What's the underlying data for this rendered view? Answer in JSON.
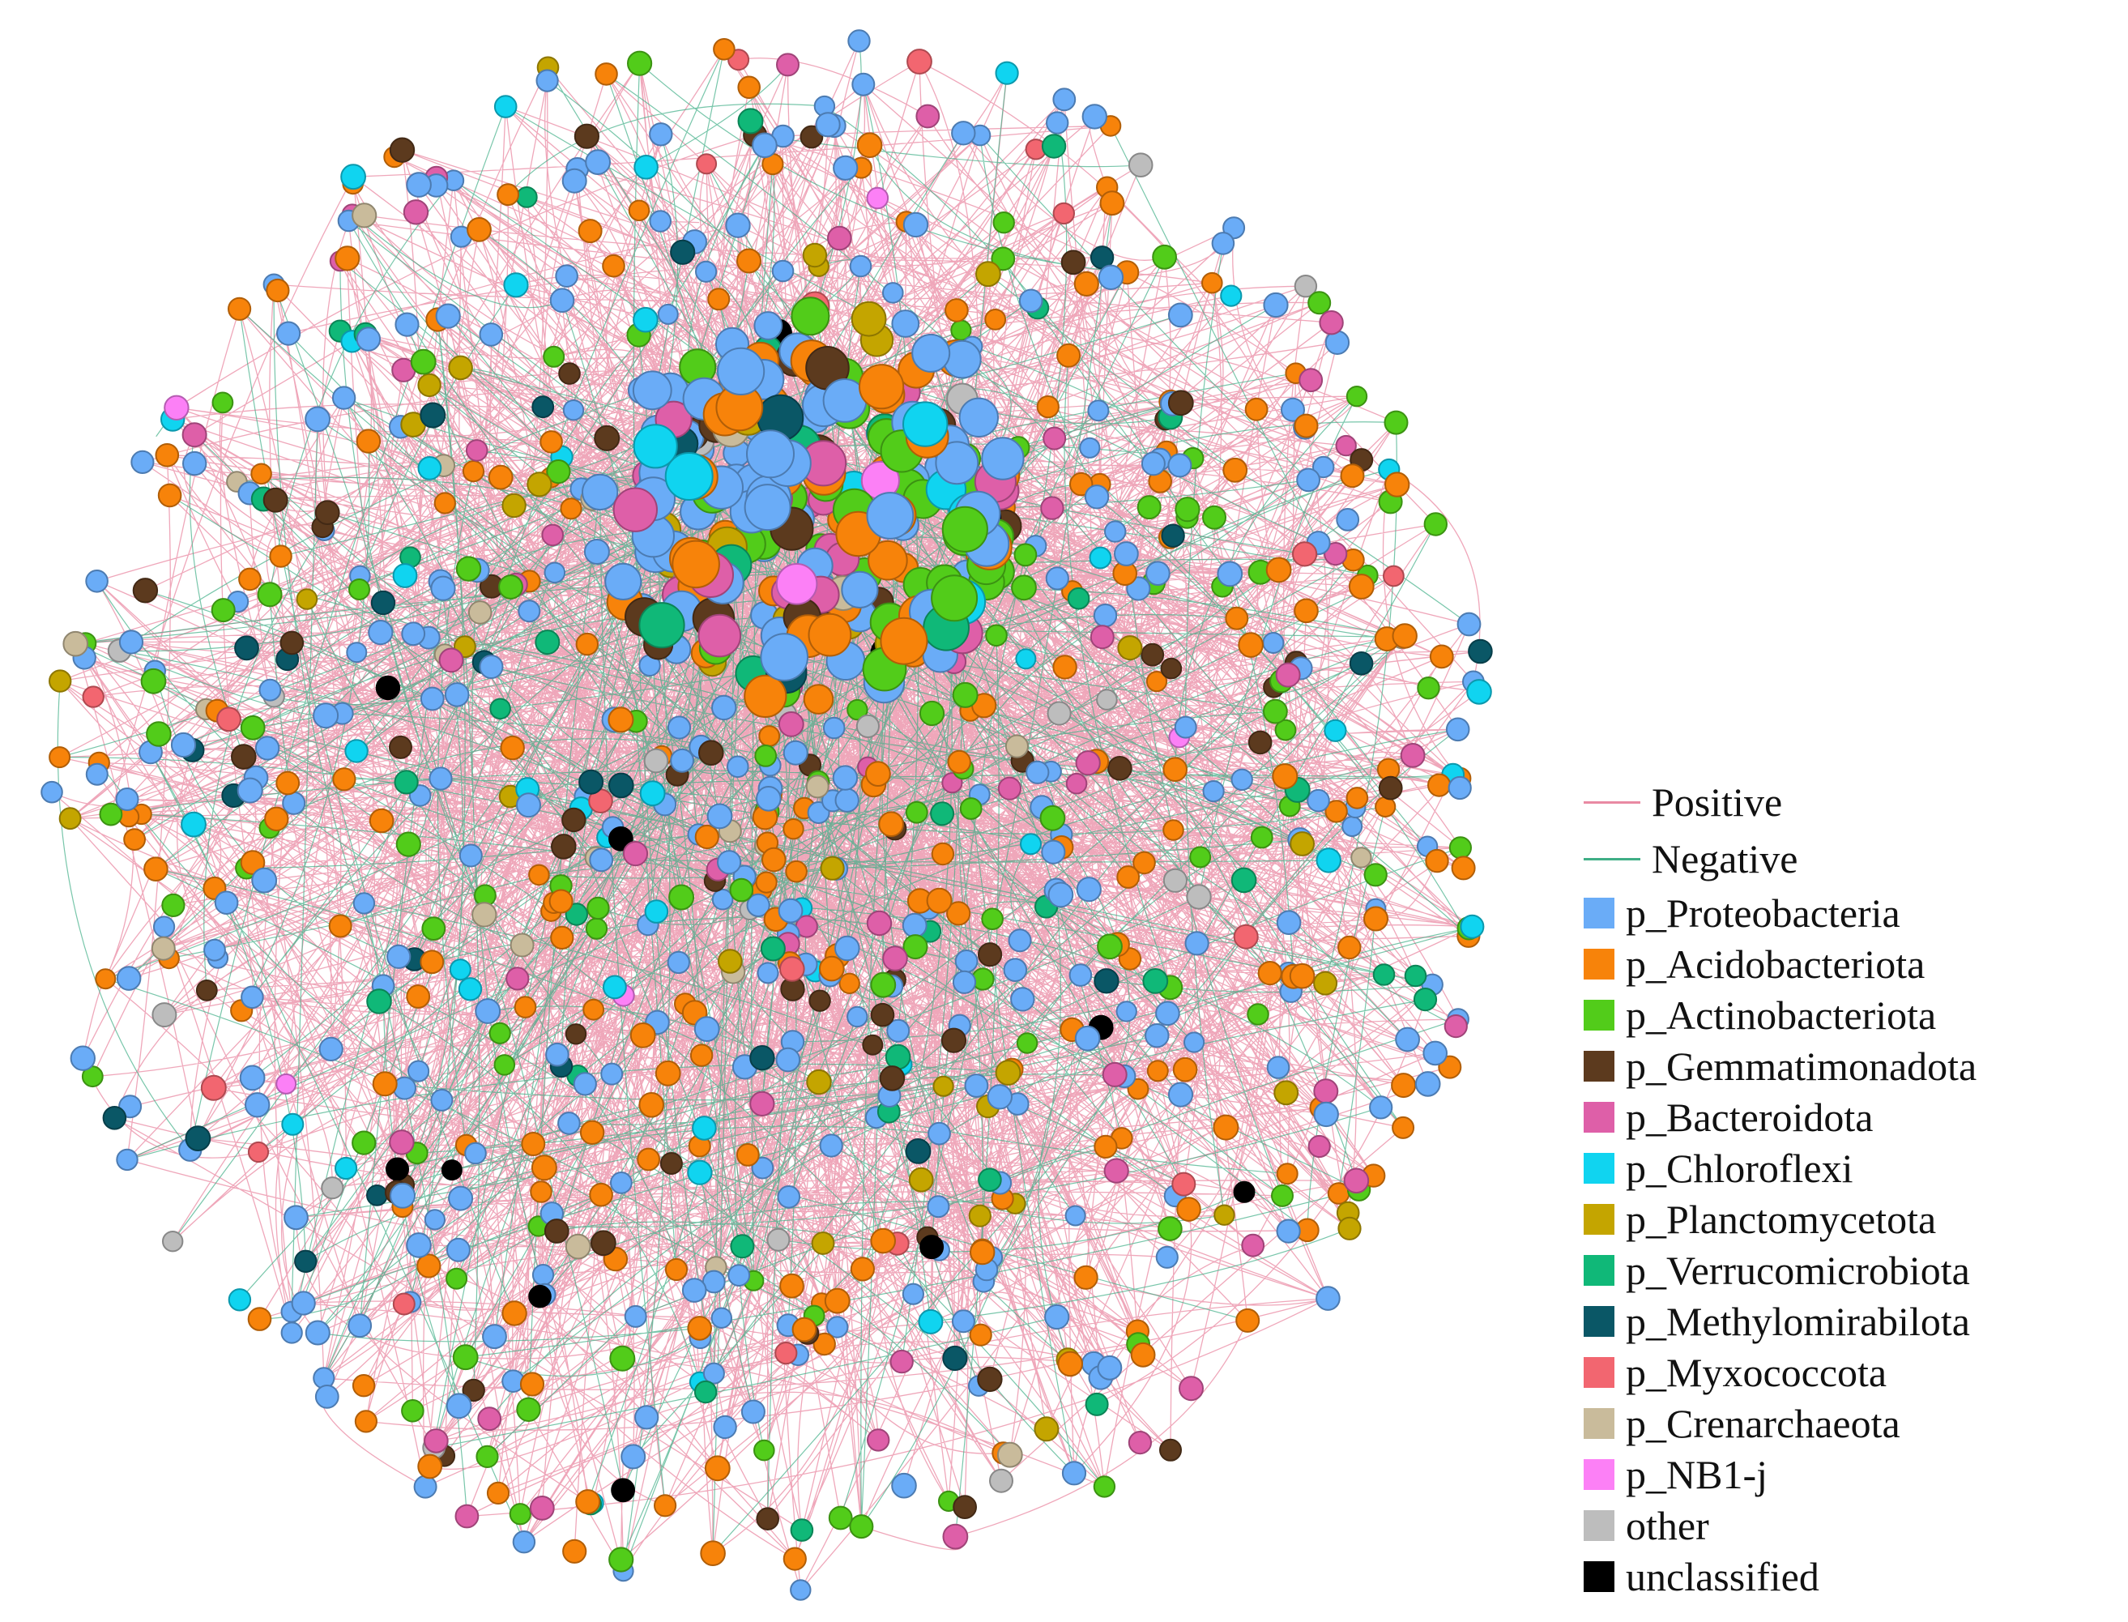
{
  "diagram": {
    "edge_types": [
      {
        "label": "Positive",
        "color": "#e98aa3"
      },
      {
        "label": "Negative",
        "color": "#3fae86"
      }
    ],
    "phyla": [
      {
        "label": "p_Proteobacteria",
        "color": "#6aacf7",
        "icon": "proteobacteria-node"
      },
      {
        "label": "p_Acidobacteriota",
        "color": "#f7830a",
        "icon": "acidobacteriota-node"
      },
      {
        "label": "p_Actinobacteriota",
        "color": "#52cc1a",
        "icon": "actinobacteriota-node"
      },
      {
        "label": "p_Gemmatimonadota",
        "color": "#5c3a1e",
        "icon": "gemmatimonadota-node"
      },
      {
        "label": "p_Bacteroidota",
        "color": "#de5fa8",
        "icon": "bacteroidota-node"
      },
      {
        "label": "p_Chloroflexi",
        "color": "#10d4f0",
        "icon": "chloroflexi-node"
      },
      {
        "label": "p_Planctomycetota",
        "color": "#c4a500",
        "icon": "planctomycetota-node"
      },
      {
        "label": "p_Verrucomicrobiota",
        "color": "#10b878",
        "icon": "verrucomicrobiota-node"
      },
      {
        "label": "p_Methylomirabilota",
        "color": "#0a5766",
        "icon": "methylomirabilota-node"
      },
      {
        "label": "p_Myxococcota",
        "color": "#f26670",
        "icon": "myxococcota-node"
      },
      {
        "label": "p_Crenarchaeota",
        "color": "#c9bb9b",
        "icon": "crenarchaeota-node"
      },
      {
        "label": "p_NB1-j",
        "color": "#fc80f6",
        "icon": "nb1j-node"
      },
      {
        "label": "other",
        "color": "#bdbdbd",
        "icon": "other-node"
      },
      {
        "label": "unclassified",
        "color": "#000000",
        "icon": "unclassified-node"
      }
    ]
  }
}
